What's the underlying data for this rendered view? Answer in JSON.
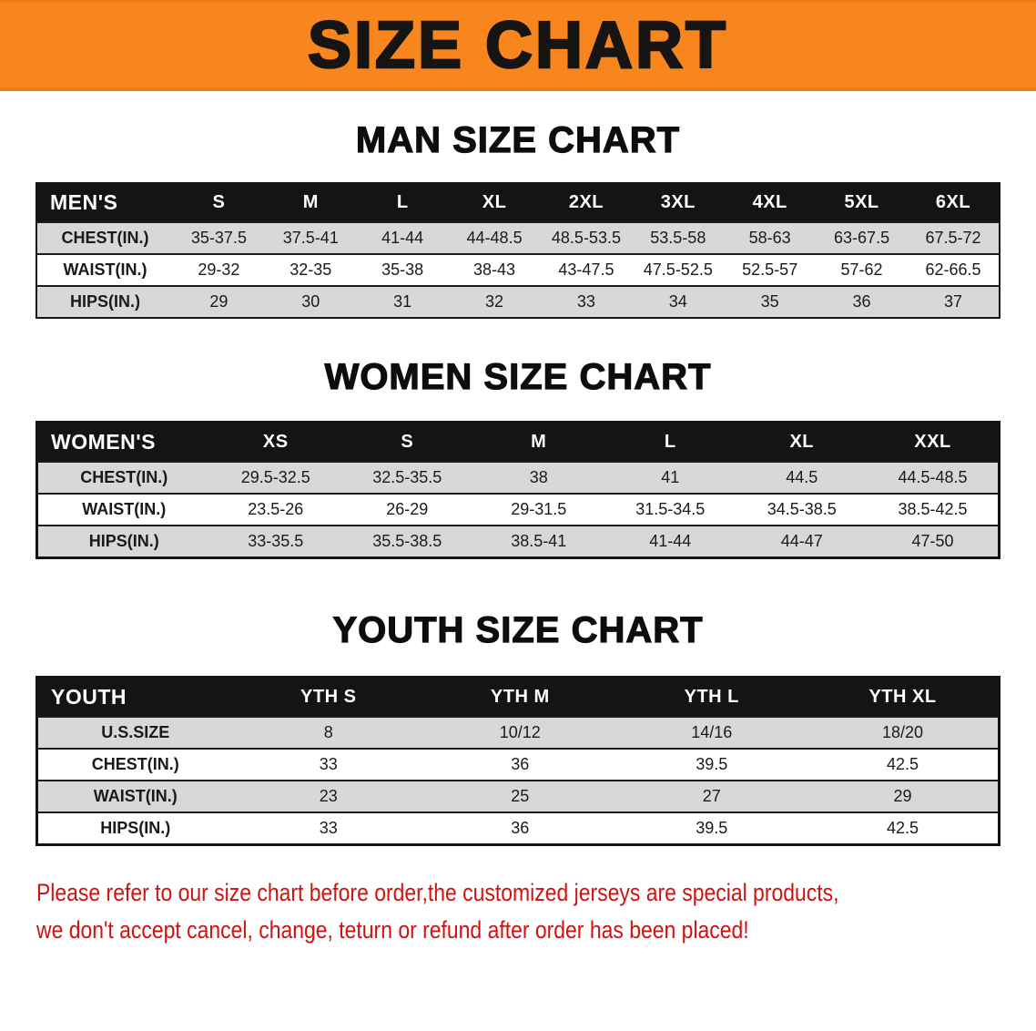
{
  "banner": {
    "title": "SIZE CHART",
    "bg_color": "#F6861D",
    "text_color": "#161513"
  },
  "men": {
    "heading": "MAN SIZE CHART",
    "table": {
      "header": [
        "MEN'S",
        "S",
        "M",
        "L",
        "XL",
        "2XL",
        "3XL",
        "4XL",
        "5XL",
        "6XL"
      ],
      "rows": [
        [
          "CHEST(IN.)",
          "35-37.5",
          "37.5-41",
          "41-44",
          "44-48.5",
          "48.5-53.5",
          "53.5-58",
          "58-63",
          "63-67.5",
          "67.5-72"
        ],
        [
          "WAIST(IN.)",
          "29-32",
          "32-35",
          "35-38",
          "38-43",
          "43-47.5",
          "47.5-52.5",
          "52.5-57",
          "57-62",
          "62-66.5"
        ],
        [
          "HIPS(IN.)",
          "29",
          "30",
          "31",
          "32",
          "33",
          "34",
          "35",
          "36",
          "37"
        ]
      ]
    }
  },
  "women": {
    "heading": "WOMEN SIZE CHART",
    "table": {
      "header": [
        "WOMEN'S",
        "XS",
        "S",
        "M",
        "L",
        "XL",
        "XXL"
      ],
      "rows": [
        [
          "CHEST(IN.)",
          "29.5-32.5",
          "32.5-35.5",
          "38",
          "41",
          "44.5",
          "44.5-48.5"
        ],
        [
          "WAIST(IN.)",
          "23.5-26",
          "26-29",
          "29-31.5",
          "31.5-34.5",
          "34.5-38.5",
          "38.5-42.5"
        ],
        [
          "HIPS(IN.)",
          "33-35.5",
          "35.5-38.5",
          "38.5-41",
          "41-44",
          "44-47",
          "47-50"
        ]
      ]
    }
  },
  "youth": {
    "heading": "YOUTH SIZE CHART",
    "table": {
      "header": [
        "YOUTH",
        "YTH S",
        "YTH M",
        "YTH L",
        "YTH XL"
      ],
      "rows": [
        [
          "U.S.SIZE",
          "8",
          "10/12",
          "14/16",
          "18/20"
        ],
        [
          "CHEST(IN.)",
          "33",
          "36",
          "39.5",
          "42.5"
        ],
        [
          "WAIST(IN.)",
          "23",
          "25",
          "27",
          "29"
        ],
        [
          "HIPS(IN.)",
          "33",
          "36",
          "39.5",
          "42.5"
        ]
      ]
    }
  },
  "disclaimer": {
    "line1": "Please refer to our size chart before order,the customized jerseys are special products,",
    "line2": "we don't accept cancel, change, teturn or refund after order has been placed!",
    "text_color": "#d01310"
  },
  "row_colors": {
    "odd_row_bg": "#d8d8d8",
    "even_row_bg": "#ffffff",
    "header_bg": "#141414",
    "header_text": "#ffffff"
  }
}
